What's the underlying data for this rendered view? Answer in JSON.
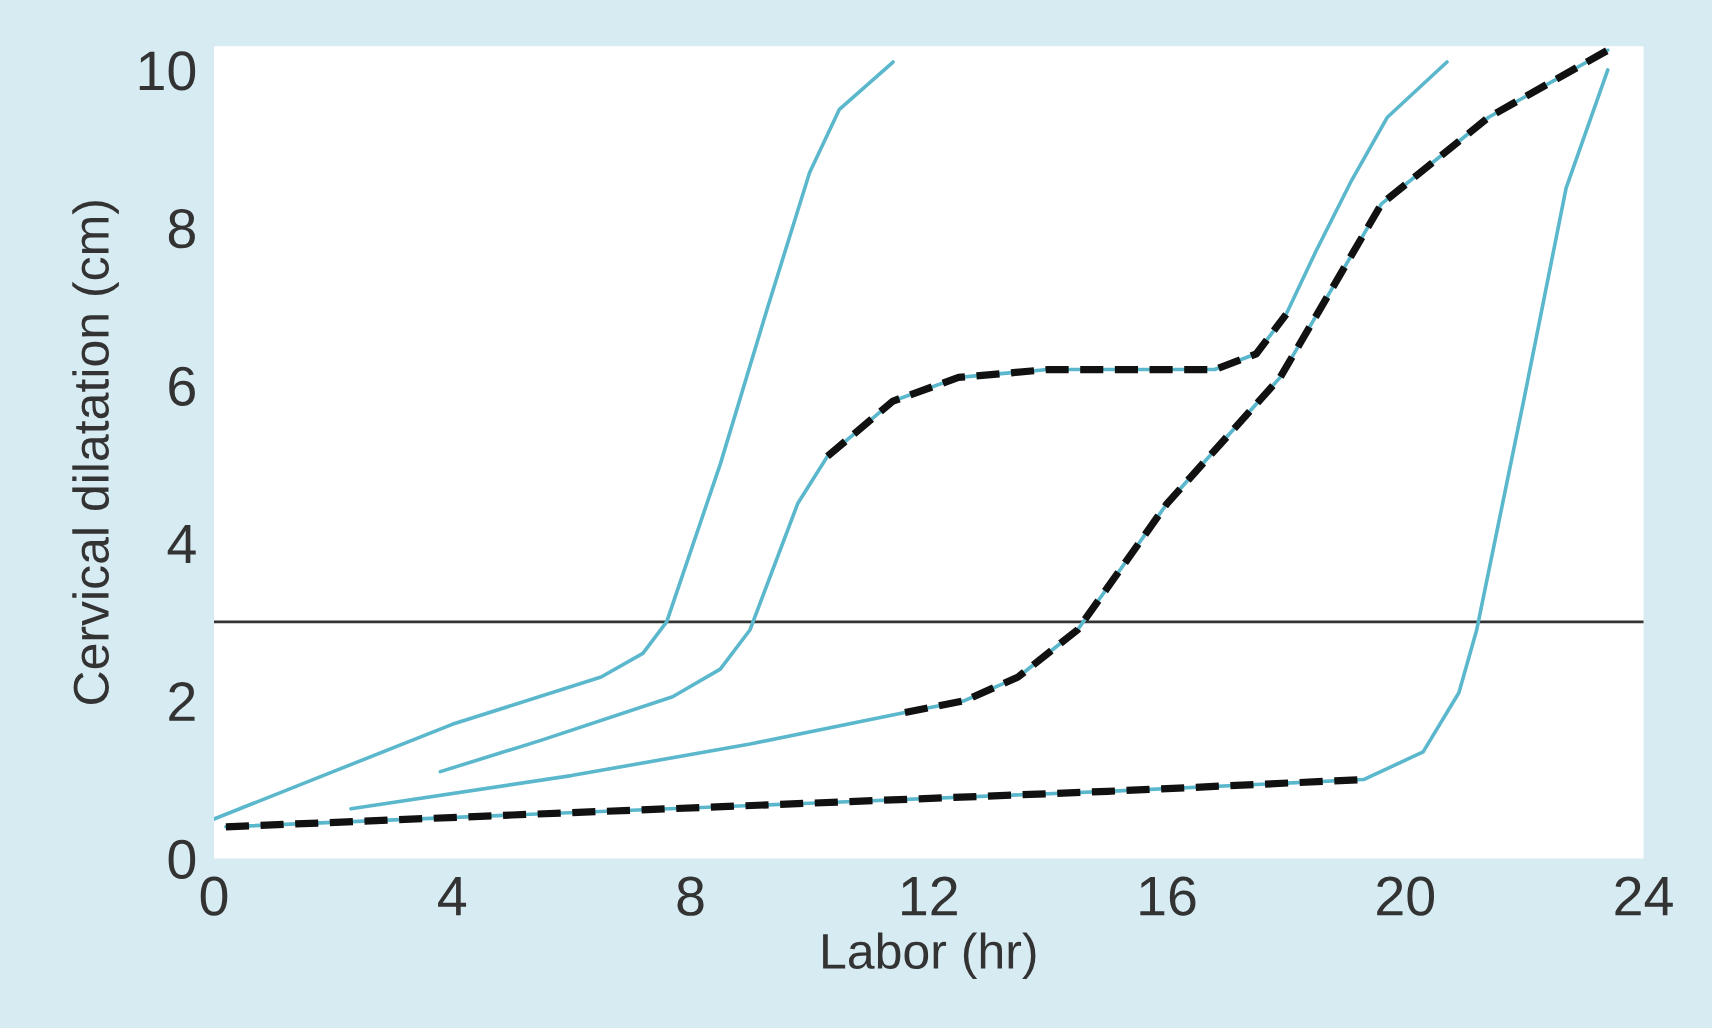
{
  "chart_data": {
    "type": "line",
    "xlabel": "Labor (hr)",
    "ylabel": "Cervical dilatation (cm)",
    "xlim": [
      0,
      24
    ],
    "ylim": [
      0,
      10.3
    ],
    "xticks": [
      0,
      4,
      8,
      12,
      16,
      20,
      24
    ],
    "yticks": [
      0,
      2,
      4,
      6,
      8,
      10
    ],
    "grid": false,
    "legend": false,
    "ref_lines": [
      {
        "axis": "y",
        "value": 3,
        "color": "#333333",
        "line_style": "solid"
      }
    ],
    "series": [
      {
        "color": "#5bb8cc",
        "line_style": "solid",
        "x": [
          0,
          2,
          4,
          6.5,
          7.2,
          7.6,
          8.5,
          9.3,
          10,
          10.5,
          11.4
        ],
        "values": [
          0.5,
          1.1,
          1.7,
          2.3,
          2.6,
          3.0,
          5.0,
          7.0,
          8.7,
          9.5,
          10.1
        ]
      },
      {
        "color": "#5bb8cc",
        "line_style": "solid",
        "x": [
          3.8,
          5.5,
          7.7,
          8.5,
          9.0,
          9.8,
          10.3,
          11.4,
          12.5,
          14,
          16.8,
          17.5,
          18.0,
          18.5,
          19.1,
          19.7,
          20.7
        ],
        "values": [
          1.1,
          1.5,
          2.05,
          2.4,
          2.9,
          4.5,
          5.1,
          5.8,
          6.1,
          6.2,
          6.2,
          6.4,
          6.9,
          7.7,
          8.6,
          9.4,
          10.1
        ]
      },
      {
        "color": "#5bb8cc",
        "line_style": "solid",
        "x": [
          2.3,
          6,
          9,
          11.6,
          12.6,
          13.5,
          14.5,
          16,
          17.9,
          19.6,
          21.4,
          23.4
        ],
        "values": [
          0.63,
          1.05,
          1.45,
          1.85,
          2.0,
          2.3,
          2.9,
          4.5,
          6.1,
          8.3,
          9.4,
          10.25
        ]
      },
      {
        "color": "#5bb8cc",
        "line_style": "solid",
        "x": [
          0.2,
          5,
          10,
          15,
          19.3,
          20.3,
          20.9,
          21.2,
          22.0,
          22.7,
          23.4
        ],
        "values": [
          0.4,
          0.55,
          0.7,
          0.85,
          1.0,
          1.35,
          2.1,
          2.9,
          5.85,
          8.5,
          10.0
        ]
      },
      {
        "color": "#111111",
        "line_style": "dashed",
        "x": [
          0.2,
          5,
          10,
          15,
          19.3
        ],
        "values": [
          0.4,
          0.55,
          0.7,
          0.85,
          1.0
        ]
      },
      {
        "color": "#111111",
        "line_style": "dashed",
        "x": [
          10.3,
          11.4,
          12.5,
          14,
          16.8,
          17.5,
          18.0
        ],
        "values": [
          5.1,
          5.8,
          6.1,
          6.2,
          6.2,
          6.4,
          6.9
        ]
      },
      {
        "color": "#111111",
        "line_style": "dashed",
        "x": [
          11.6,
          12.6,
          13.5,
          14.5,
          16,
          17.9,
          19.6,
          21.4,
          23.4
        ],
        "values": [
          1.85,
          2.0,
          2.3,
          2.9,
          4.5,
          6.1,
          8.3,
          9.4,
          10.25
        ]
      }
    ]
  }
}
